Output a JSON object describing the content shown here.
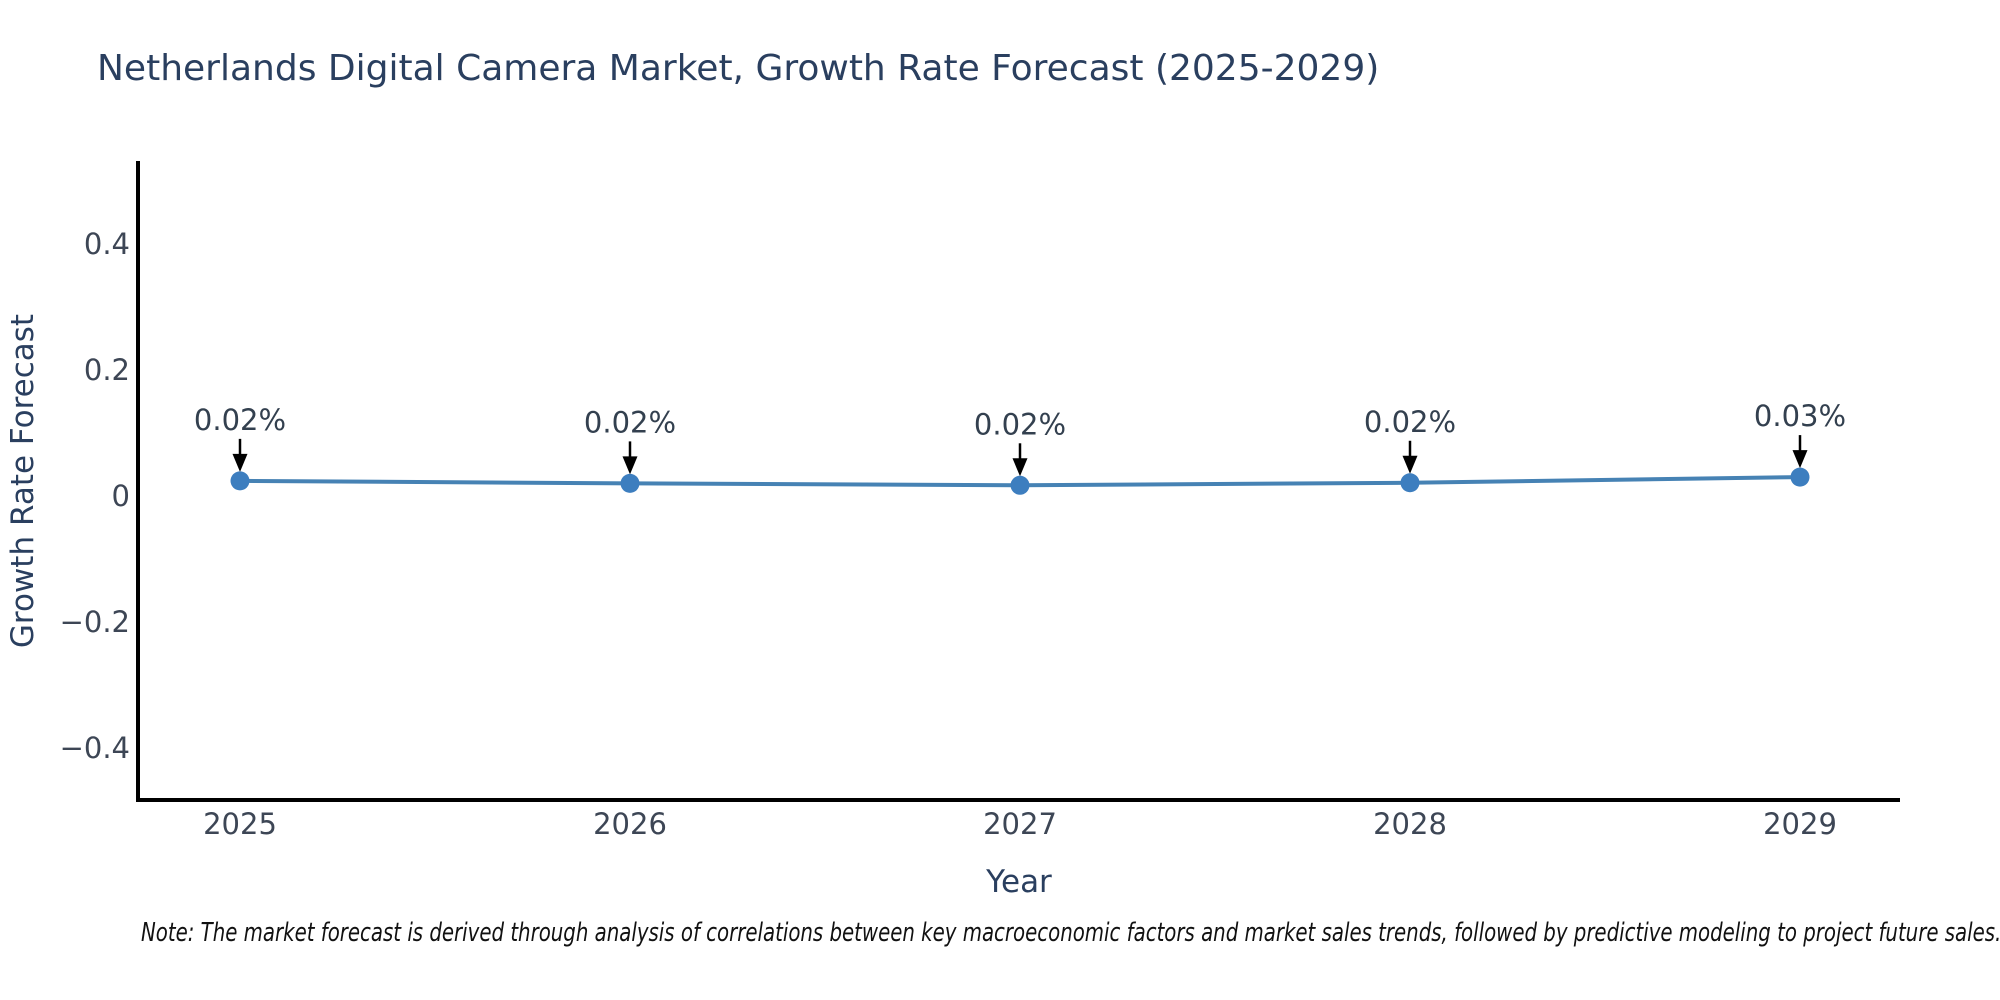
{
  "note": {
    "text": "Note: The market forecast is derived through analysis of correlations between key macroeconomic factors and market sales trends, followed by predictive modeling to project future sales."
  },
  "chart_data": {
    "type": "line",
    "title": "Netherlands Digital Camera Market, Growth Rate Forecast (2025-2029)",
    "xlabel": "Year",
    "ylabel": "Growth Rate Forecast",
    "x": [
      2025,
      2026,
      2027,
      2028,
      2029
    ],
    "xticks": [
      "2025",
      "2026",
      "2027",
      "2028",
      "2029"
    ],
    "series": [
      {
        "name": "Growth Rate Forecast",
        "values": [
          0.024,
          0.02,
          0.017,
          0.021,
          0.03
        ],
        "point_labels": [
          "0.02%",
          "0.02%",
          "0.02%",
          "0.02%",
          "0.03%"
        ]
      }
    ],
    "yticks": {
      "values": [
        0.4,
        0.2,
        0,
        -0.2,
        -0.4
      ],
      "labels": [
        "0.4",
        "0.2",
        "0",
        "−0.2",
        "−0.4"
      ]
    },
    "ylim": [
      -0.483,
      0.53
    ],
    "grid": false,
    "legend": "none",
    "marker": "circle",
    "annotations": "value labels with downward arrows above each point",
    "colors": {
      "line": "#4682b4",
      "marker": "#3d7ebf",
      "title_text": "#2a3f5f",
      "axis_text": "#2a3f5f",
      "tick_text": "#3d4655",
      "annotation_text": "#33404f",
      "arrow": "#000000",
      "spine": "#000000",
      "note_text": "#111111",
      "background": "#ffffff"
    }
  }
}
